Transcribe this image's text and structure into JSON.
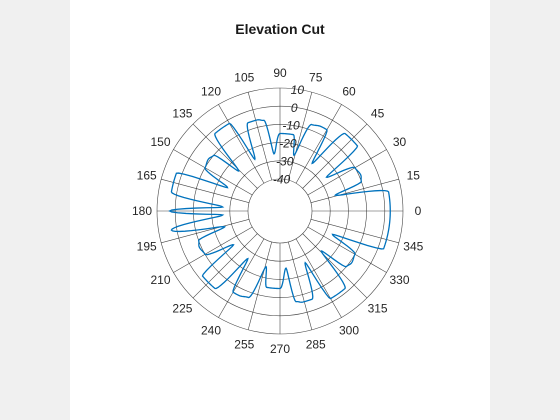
{
  "chart_data": {
    "type": "line",
    "coordinate_system": "polar",
    "title": "Elevation Cut",
    "angle_unit": "degrees",
    "angle_direction": "counterclockwise",
    "zero_angle_location": "right",
    "angle_ticks": [
      0,
      15,
      30,
      45,
      60,
      75,
      90,
      105,
      120,
      135,
      150,
      165,
      180,
      195,
      210,
      225,
      240,
      255,
      270,
      285,
      300,
      315,
      330,
      345
    ],
    "angle_tick_labels": [
      "0",
      "15",
      "30",
      "45",
      "60",
      "75",
      "90",
      "105",
      "120",
      "135",
      "150",
      "165",
      "180",
      "195",
      "210",
      "225",
      "240",
      "255",
      "270",
      "285",
      "300",
      "315",
      "330",
      "345"
    ],
    "rlim": [
      -40,
      10
    ],
    "r_ticks": [
      -40,
      -30,
      -20,
      -10,
      0,
      10
    ],
    "r_tick_labels": [
      "-40",
      "-30",
      "-20",
      "-10",
      "0",
      "10"
    ],
    "grid": true,
    "legend": "none",
    "series": [
      {
        "color": "#0072bd",
        "theta_deg": [
          0,
          10,
          16,
          20,
          24,
          30,
          36,
          40,
          44,
          50,
          56,
          60,
          64,
          70,
          76,
          80,
          84,
          90,
          96,
          100,
          104,
          110,
          116,
          120,
          124,
          130,
          136,
          140,
          144,
          150,
          156,
          160,
          164,
          170,
          176,
          180,
          184,
          190,
          196,
          200,
          204,
          210,
          216,
          220,
          224,
          230,
          236,
          240,
          244,
          250,
          256,
          260,
          264,
          270,
          276,
          280,
          284,
          290,
          296,
          300,
          304,
          310,
          316,
          320,
          324,
          330,
          336,
          340,
          344,
          350,
          360
        ],
        "r_db": [
          3,
          3,
          -26,
          -10,
          -9,
          -10,
          -26,
          -2,
          -2,
          -2,
          -26,
          -6,
          -6,
          -7,
          -26,
          -15,
          -15,
          -15,
          -26,
          -7,
          -6,
          -6,
          -26,
          -2,
          -2,
          -2,
          -26,
          -10,
          -9,
          -10,
          -26,
          3,
          3,
          3,
          -26,
          3,
          -26,
          3,
          -26,
          -10,
          -9,
          -10,
          -26,
          -2,
          -2,
          -2,
          -26,
          -6,
          -6,
          -7,
          -26,
          -15,
          -15,
          -15,
          -26,
          -7,
          -6,
          -6,
          -26,
          -2,
          -2,
          -2,
          -26,
          -10,
          -9,
          -10,
          -26,
          3,
          3,
          3,
          3
        ]
      }
    ]
  }
}
